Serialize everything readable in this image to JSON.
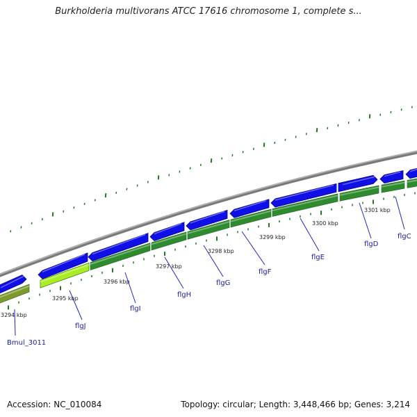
{
  "title": "Burkholderia multivorans ATCC 17616 chromosome 1, complete s...",
  "footer": {
    "accession_label": "Accession:",
    "accession": "NC_010084",
    "topology_label": "Topology:",
    "topology": "circular",
    "length_label": "Length:",
    "length": "3,448,466 bp",
    "genes_label": "Genes:",
    "genes": "3,214"
  },
  "colors": {
    "backbone": "#8c8c8c",
    "forward_gene": "#1010e6",
    "reverse_gene": "#2e8b2e",
    "highlight_gene": "#aaee22",
    "olive_gene": "#7f9a2a",
    "tick": "#1e7a1e",
    "callout": "#2222cc"
  },
  "scale_labels": [
    "3294 kbp",
    "3295 kbp",
    "3296 kbp",
    "3297 kbp",
    "3298 kbp",
    "3299 kbp",
    "3300 kbp",
    "3301 kbp"
  ],
  "gene_labels": [
    "Bmul_3011",
    "flgJ",
    "flgI",
    "flgH",
    "flgG",
    "flgF",
    "flgE",
    "flgD",
    "flgC"
  ]
}
